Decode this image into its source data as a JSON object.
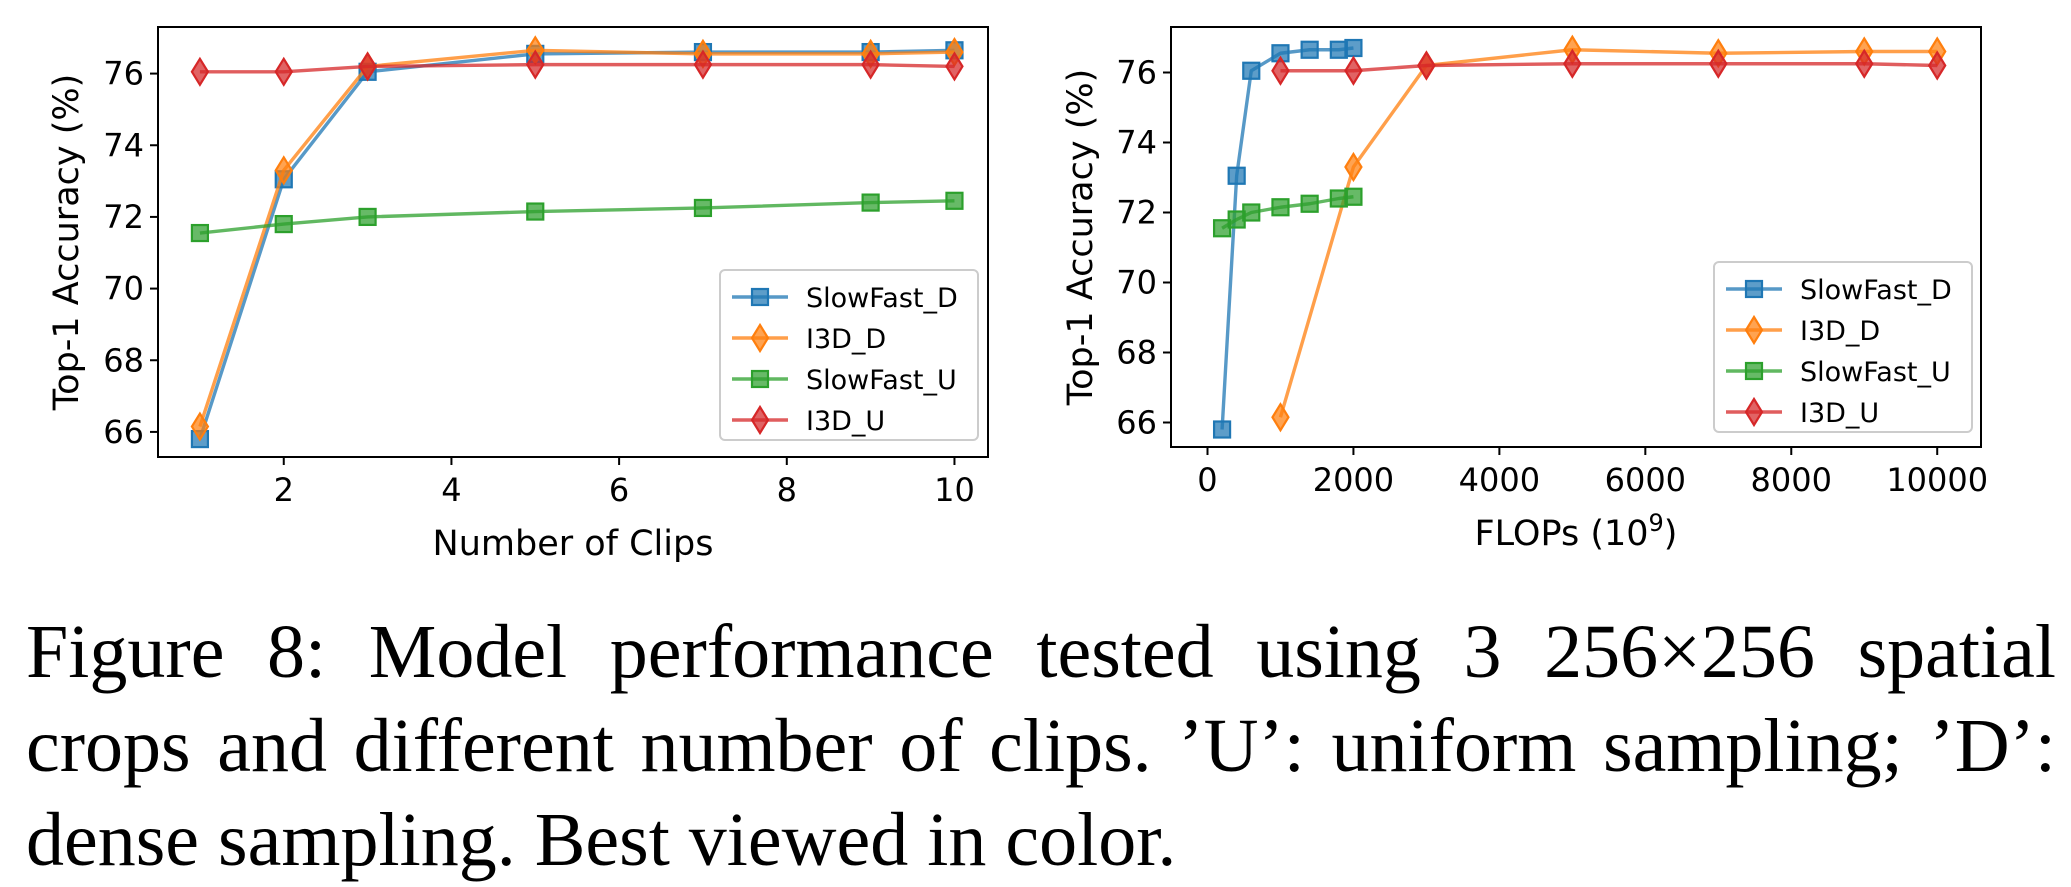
{
  "chart_data": [
    {
      "type": "line",
      "xlabel": "Number of Clips",
      "ylabel": "Top-1 Accuracy (%)",
      "xlim": [
        0.5,
        10.4
      ],
      "ylim": [
        65.3,
        77.3
      ],
      "xticks": [
        2,
        4,
        6,
        8,
        10
      ],
      "yticks": [
        66,
        68,
        70,
        72,
        74,
        76
      ],
      "grid": false,
      "legend_position": "lower-right",
      "series": [
        {
          "name": "SlowFast_D",
          "color": "#1f77b4",
          "marker": "square",
          "x": [
            1,
            2,
            3,
            5,
            7,
            9,
            10
          ],
          "y": [
            65.8,
            73.05,
            76.05,
            76.55,
            76.6,
            76.6,
            76.65
          ]
        },
        {
          "name": "I3D_D",
          "color": "#ff7f0e",
          "marker": "diamond",
          "x": [
            1,
            2,
            3,
            5,
            7,
            9,
            10
          ],
          "y": [
            66.15,
            73.3,
            76.2,
            76.65,
            76.55,
            76.55,
            76.6
          ]
        },
        {
          "name": "SlowFast_U",
          "color": "#2ca02c",
          "marker": "square",
          "x": [
            1,
            2,
            3,
            5,
            7,
            9,
            10
          ],
          "y": [
            71.55,
            71.8,
            72.0,
            72.15,
            72.25,
            72.4,
            72.45
          ]
        },
        {
          "name": "I3D_U",
          "color": "#d62728",
          "marker": "diamond",
          "x": [
            1,
            2,
            3,
            5,
            7,
            9,
            10
          ],
          "y": [
            76.05,
            76.05,
            76.2,
            76.25,
            76.25,
            76.25,
            76.2
          ]
        }
      ]
    },
    {
      "type": "line",
      "xlabel": "FLOPs (10",
      "xlabel_sup": "9",
      "xlabel_tail": ")",
      "ylabel": "Top-1 Accuracy (%)",
      "xlim": [
        -500,
        10600
      ],
      "ylim": [
        65.3,
        77.3
      ],
      "xticks": [
        0,
        2000,
        4000,
        6000,
        8000,
        10000
      ],
      "yticks": [
        66,
        68,
        70,
        72,
        74,
        76
      ],
      "grid": false,
      "legend_position": "lower-right",
      "series": [
        {
          "name": "SlowFast_D",
          "color": "#1f77b4",
          "marker": "square",
          "x": [
            200,
            400,
            600,
            1000,
            1400,
            1800,
            2000
          ],
          "y": [
            65.8,
            73.05,
            76.05,
            76.55,
            76.65,
            76.65,
            76.7
          ]
        },
        {
          "name": "I3D_D",
          "color": "#ff7f0e",
          "marker": "diamond",
          "x": [
            1000,
            2000,
            3000,
            5000,
            7000,
            9000,
            10000
          ],
          "y": [
            66.15,
            73.3,
            76.2,
            76.65,
            76.55,
            76.6,
            76.6
          ]
        },
        {
          "name": "SlowFast_U",
          "color": "#2ca02c",
          "marker": "square",
          "x": [
            200,
            400,
            600,
            1000,
            1400,
            1800,
            2000
          ],
          "y": [
            71.55,
            71.8,
            72.0,
            72.15,
            72.25,
            72.4,
            72.45
          ]
        },
        {
          "name": "I3D_U",
          "color": "#d62728",
          "marker": "diamond",
          "x": [
            1000,
            2000,
            3000,
            5000,
            7000,
            9000,
            10000
          ],
          "y": [
            76.05,
            76.05,
            76.2,
            76.25,
            76.25,
            76.25,
            76.2
          ]
        }
      ]
    }
  ],
  "caption": {
    "line1": "Figure 8:  Model performance tested using 3 256×256 spatial",
    "line2": "crops and different number of clips. ’U’: uniform sampling; ’D’:",
    "line3": "dense sampling. Best viewed in color."
  }
}
